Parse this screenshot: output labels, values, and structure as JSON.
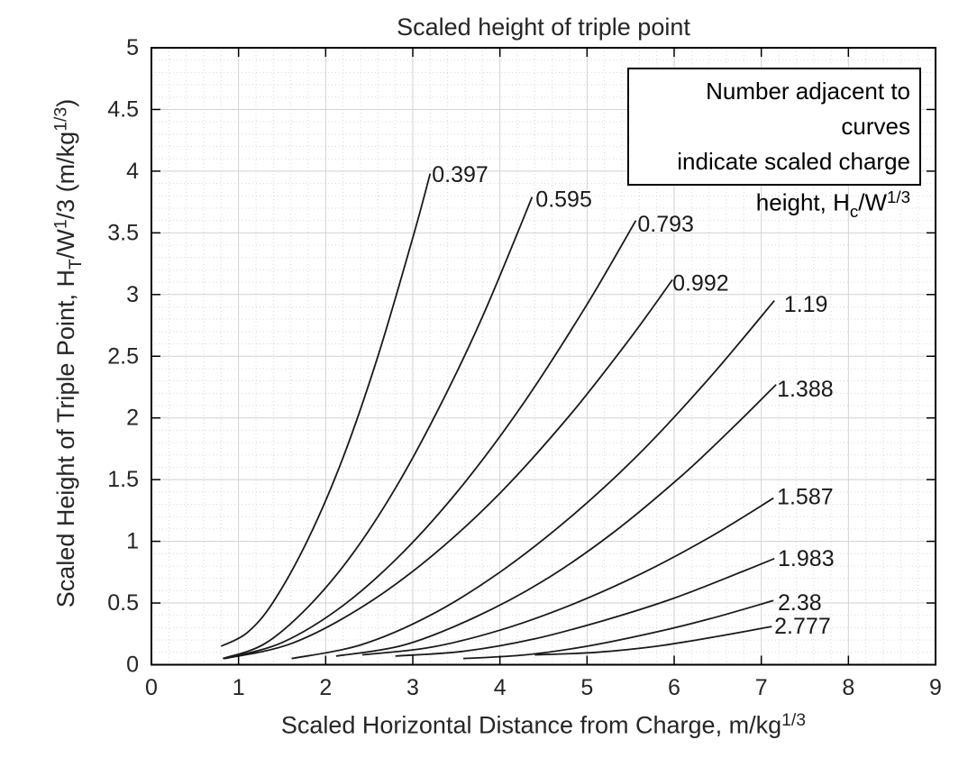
{
  "figure": {
    "background": "#ffffff"
  },
  "colors": {
    "curve": "#1a1a1a",
    "axis_box": "#000000",
    "tick": "#262626",
    "text": "#262626",
    "grid_major": "#d2d2d2",
    "grid_minor": "#d8d8d8",
    "note_border": "#000000",
    "note_background": "#ffffff"
  },
  "chart_data": {
    "type": "line",
    "title": "Scaled height of triple point",
    "xlabel_segments": [
      {
        "t": "Scaled Horizontal Distance from Charge, m/kg"
      },
      {
        "t": "1/3",
        "s": "sup"
      }
    ],
    "ylabel_segments": [
      {
        "t": "Scaled Height of Triple Point, H"
      },
      {
        "t": "T",
        "s": "sub"
      },
      {
        "t": "/W"
      },
      {
        "t": "1",
        "s": "sup"
      },
      {
        "t": "/3 (m/kg"
      },
      {
        "t": "1/3",
        "s": "sup"
      },
      {
        "t": ")"
      }
    ],
    "xlim": [
      0,
      9
    ],
    "ylim": [
      0,
      5
    ],
    "xticks": [
      0,
      1,
      2,
      3,
      4,
      5,
      6,
      7,
      8,
      9
    ],
    "yticks": [
      0,
      0.5,
      1,
      1.5,
      2,
      2.5,
      3,
      3.5,
      4,
      4.5,
      5
    ],
    "xtick_labels": [
      "0",
      "1",
      "2",
      "3",
      "4",
      "5",
      "6",
      "7",
      "8",
      "9"
    ],
    "ytick_labels": [
      "0",
      "0.5",
      "1",
      "1.5",
      "2",
      "2.5",
      "3",
      "3.5",
      "4",
      "4.5",
      "5"
    ],
    "grid": {
      "major": true,
      "minor": true,
      "minor_dx": 0.2,
      "minor_dy": 0.1
    },
    "note_box": {
      "position": "top-right",
      "lines_segments": [
        [
          {
            "t": "Number adjacent to curves"
          }
        ],
        [
          {
            "t": "indicate scaled charge"
          }
        ],
        [
          {
            "t": "height, H"
          },
          {
            "t": "c",
            "s": "sub"
          },
          {
            "t": "/W"
          },
          {
            "t": "1/3",
            "s": "sup"
          }
        ]
      ]
    },
    "series": [
      {
        "name": "0.397",
        "label": "0.397",
        "label_pos": [
          3.22,
          3.97
        ],
        "points": [
          [
            0.8,
            0.15
          ],
          [
            1.1,
            0.26
          ],
          [
            1.4,
            0.51
          ],
          [
            1.8,
            1.02
          ],
          [
            2.2,
            1.68
          ],
          [
            2.6,
            2.5
          ],
          [
            3.0,
            3.46
          ],
          [
            3.2,
            3.98
          ]
        ]
      },
      {
        "name": "0.595",
        "label": "0.595",
        "label_pos": [
          4.41,
          3.77
        ],
        "points": [
          [
            0.82,
            0.05
          ],
          [
            1.3,
            0.17
          ],
          [
            1.8,
            0.47
          ],
          [
            2.3,
            0.89
          ],
          [
            2.8,
            1.43
          ],
          [
            3.3,
            2.08
          ],
          [
            3.8,
            2.82
          ],
          [
            4.37,
            3.79
          ]
        ]
      },
      {
        "name": "0.793",
        "label": "0.793",
        "label_pos": [
          5.58,
          3.57
        ],
        "points": [
          [
            0.83,
            0.05
          ],
          [
            1.5,
            0.18
          ],
          [
            2.2,
            0.48
          ],
          [
            2.9,
            0.92
          ],
          [
            3.6,
            1.48
          ],
          [
            4.3,
            2.15
          ],
          [
            5.0,
            2.92
          ],
          [
            5.56,
            3.6
          ]
        ]
      },
      {
        "name": "0.992",
        "label": "0.992",
        "label_pos": [
          5.98,
          3.09
        ],
        "points": [
          [
            0.84,
            0.05
          ],
          [
            1.6,
            0.17
          ],
          [
            2.4,
            0.46
          ],
          [
            3.2,
            0.87
          ],
          [
            4.0,
            1.39
          ],
          [
            4.8,
            2.02
          ],
          [
            5.5,
            2.65
          ],
          [
            5.98,
            3.12
          ]
        ]
      },
      {
        "name": "1.19",
        "label": "1.19",
        "label_pos": [
          7.26,
          2.92
        ],
        "points": [
          [
            1.61,
            0.05
          ],
          [
            2.4,
            0.16
          ],
          [
            3.2,
            0.4
          ],
          [
            4.0,
            0.75
          ],
          [
            4.8,
            1.19
          ],
          [
            5.6,
            1.71
          ],
          [
            6.4,
            2.32
          ],
          [
            7.15,
            2.95
          ]
        ]
      },
      {
        "name": "1.388",
        "label": "1.388",
        "label_pos": [
          7.18,
          2.23
        ],
        "points": [
          [
            2.12,
            0.07
          ],
          [
            2.9,
            0.16
          ],
          [
            3.7,
            0.38
          ],
          [
            4.5,
            0.68
          ],
          [
            5.3,
            1.07
          ],
          [
            6.1,
            1.54
          ],
          [
            6.7,
            1.94
          ],
          [
            7.17,
            2.27
          ]
        ]
      },
      {
        "name": "1.587",
        "label": "1.587",
        "label_pos": [
          7.18,
          1.36
        ],
        "points": [
          [
            2.42,
            0.08
          ],
          [
            3.2,
            0.14
          ],
          [
            4.0,
            0.28
          ],
          [
            4.8,
            0.48
          ],
          [
            5.6,
            0.73
          ],
          [
            6.4,
            1.03
          ],
          [
            7.14,
            1.35
          ]
        ]
      },
      {
        "name": "1.983",
        "label": "1.983",
        "label_pos": [
          7.19,
          0.86
        ],
        "points": [
          [
            2.8,
            0.07
          ],
          [
            3.6,
            0.11
          ],
          [
            4.4,
            0.21
          ],
          [
            5.2,
            0.36
          ],
          [
            6.0,
            0.54
          ],
          [
            6.8,
            0.76
          ],
          [
            7.15,
            0.86
          ]
        ]
      },
      {
        "name": "2.38",
        "label": "2.38",
        "label_pos": [
          7.19,
          0.5
        ],
        "points": [
          [
            3.58,
            0.05
          ],
          [
            4.3,
            0.08
          ],
          [
            5.0,
            0.15
          ],
          [
            5.7,
            0.25
          ],
          [
            6.4,
            0.37
          ],
          [
            7.14,
            0.52
          ]
        ]
      },
      {
        "name": "2.777",
        "label": "2.777",
        "label_pos": [
          7.15,
          0.31
        ],
        "points": [
          [
            4.4,
            0.08
          ],
          [
            5.1,
            0.1
          ],
          [
            5.8,
            0.15
          ],
          [
            6.5,
            0.23
          ],
          [
            7.12,
            0.31
          ]
        ]
      }
    ]
  }
}
